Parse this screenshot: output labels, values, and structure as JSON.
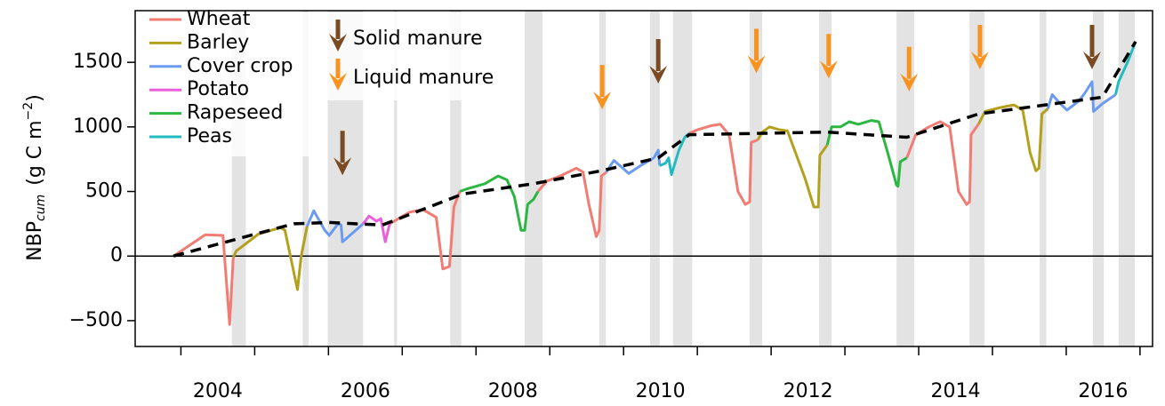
{
  "chart_data": {
    "type": "line",
    "y_label": {
      "main": "NBP",
      "subscript": "cum",
      "unit": "(g C m",
      "superscript": "−2",
      "close": ")"
    },
    "xlim": [
      2003.38,
      2017.17
    ],
    "ylim": [
      -700,
      1900
    ],
    "yticks": [
      {
        "value": -500,
        "label": "−500"
      },
      0,
      500,
      1000,
      1500
    ],
    "xticks": [
      {
        "value": 2004.5,
        "label": "2004"
      },
      {
        "value": 2006.5,
        "label": "2006"
      },
      {
        "value": 2008.5,
        "label": "2008"
      },
      {
        "value": 2010.5,
        "label": "2010"
      },
      {
        "value": 2012.5,
        "label": "2012"
      },
      {
        "value": 2014.5,
        "label": "2014"
      },
      {
        "value": 2016.5,
        "label": "2016"
      }
    ],
    "xtick_marks": [
      2004,
      2005,
      2006,
      2007,
      2008,
      2009,
      2010,
      2011,
      2012,
      2013,
      2014,
      2015,
      2016,
      2017
    ],
    "hline": 0,
    "legend": "top-left",
    "series": [
      {
        "name": "Wheat",
        "color": "#f07c74",
        "x": [
          2003.9,
          2004.33,
          2004.57,
          2004.66,
          2004.71,
          null,
          2006.83,
          2006.92,
          2007.1,
          2007.28,
          2007.46,
          2007.55,
          2007.64,
          2007.7,
          2007.78,
          null,
          2008.84,
          2008.96,
          2009.14,
          2009.36,
          2009.45,
          2009.53,
          2009.63,
          2009.67,
          2009.7,
          2009.77,
          null,
          2010.89,
          2011.01,
          2011.19,
          2011.31,
          2011.43,
          2011.55,
          2011.65,
          2011.71,
          2011.73,
          2011.82,
          null,
          2013.84,
          2013.96,
          2014.14,
          2014.29,
          2014.42,
          2014.54,
          2014.65,
          2014.69,
          2014.71,
          2014.81
        ],
        "values": [
          0,
          165,
          160,
          -530,
          -10,
          null,
          250,
          280,
          340,
          360,
          300,
          -100,
          -80,
          380,
          500,
          null,
          500,
          580,
          620,
          680,
          650,
          400,
          150,
          200,
          620,
          650,
          null,
          950,
          980,
          1010,
          1020,
          940,
          500,
          400,
          420,
          880,
          900,
          null,
          760,
          940,
          1000,
          1040,
          1000,
          500,
          400,
          420,
          940,
          1020
        ]
      },
      {
        "name": "Barley",
        "color": "#b3a01c",
        "x": [
          2004.71,
          2004.75,
          2005.05,
          2005.35,
          2005.41,
          2005.58,
          2005.63,
          2005.71,
          null,
          2011.82,
          2011.88,
          2011.98,
          2012.1,
          2012.22,
          2012.46,
          2012.58,
          2012.64,
          2012.66,
          2012.76,
          null,
          2014.81,
          2014.9,
          2015.11,
          2015.29,
          2015.41,
          2015.51,
          2015.59,
          2015.63,
          2015.67,
          2015.75
        ],
        "values": [
          -10,
          40,
          170,
          220,
          200,
          -260,
          0,
          230,
          null,
          900,
          960,
          1000,
          980,
          970,
          600,
          380,
          380,
          780,
          860,
          null,
          1020,
          1120,
          1150,
          1170,
          1130,
          800,
          660,
          680,
          1100,
          1140
        ]
      },
      {
        "name": "Cover crop",
        "color": "#6b9bf0",
        "x": [
          2005.71,
          2005.8,
          2005.95,
          2006.01,
          2006.13,
          2006.17,
          2006.19,
          2006.37,
          2006.47,
          null,
          2009.77,
          2009.82,
          2009.87,
          2009.99,
          2010.07,
          2010.23,
          2010.41,
          2010.47,
          2010.49,
          null,
          2015.75,
          2015.81,
          2015.92,
          2016.01,
          2016.17,
          2016.25,
          2016.35,
          2016.37,
          2016.49,
          2016.67
        ],
        "values": [
          230,
          350,
          200,
          160,
          250,
          240,
          110,
          200,
          250,
          null,
          650,
          700,
          740,
          680,
          640,
          700,
          760,
          820,
          700,
          null,
          1140,
          1250,
          1180,
          1130,
          1200,
          1260,
          1350,
          1120,
          1180,
          1250
        ]
      },
      {
        "name": "Potato",
        "color": "#ea5fdc",
        "x": [
          2006.47,
          2006.55,
          2006.65,
          2006.71,
          2006.77,
          2006.83
        ],
        "values": [
          250,
          310,
          270,
          290,
          110,
          250
        ]
      },
      {
        "name": "Rapeseed",
        "color": "#2cb742",
        "x": [
          2007.78,
          2007.88,
          2008.12,
          2008.3,
          2008.42,
          2008.52,
          2008.61,
          2008.66,
          2008.7,
          2008.78,
          2008.84,
          null,
          2012.76,
          2012.82,
          2012.94,
          2013.06,
          2013.18,
          2013.36,
          2013.46,
          2013.58,
          2013.7,
          2013.72,
          2013.75,
          2013.84
        ],
        "values": [
          500,
          520,
          560,
          620,
          590,
          460,
          200,
          200,
          400,
          440,
          500,
          null,
          860,
          1000,
          1000,
          1040,
          1020,
          1050,
          1040,
          800,
          550,
          540,
          730,
          760
        ]
      },
      {
        "name": "Peas",
        "color": "#22bcc0",
        "x": [
          2010.49,
          2010.57,
          2010.61,
          2010.65,
          2010.75,
          2010.83,
          2010.89,
          null,
          2016.67,
          2016.71,
          2016.83,
          2016.94
        ],
        "values": [
          700,
          720,
          760,
          630,
          820,
          920,
          950,
          null,
          1250,
          1350,
          1500,
          1660
        ]
      }
    ],
    "trend": {
      "color": "#000000",
      "x": [
        2003.9,
        2005.53,
        2006.01,
        2006.73,
        2007.82,
        2008.78,
        2009.69,
        2010.47,
        2010.89,
        2012.76,
        2013.84,
        2014.81,
        2016.49,
        2016.94
      ],
      "values": [
        0,
        250,
        260,
        240,
        480,
        560,
        660,
        760,
        940,
        960,
        920,
        1100,
        1230,
        1660
      ]
    },
    "shaded_periods": [
      [
        2004.69,
        2004.88
      ],
      [
        2005.65,
        2005.73
      ],
      [
        2005.99,
        2006.47
      ],
      [
        2006.89,
        2006.93
      ],
      [
        2007.65,
        2007.8
      ],
      [
        2008.66,
        2008.9
      ],
      [
        2009.67,
        2009.76
      ],
      [
        2010.36,
        2010.49
      ],
      [
        2010.67,
        2010.93
      ],
      [
        2011.71,
        2011.88
      ],
      [
        2012.65,
        2012.82
      ],
      [
        2013.7,
        2013.94
      ],
      [
        2014.69,
        2014.89
      ],
      [
        2015.64,
        2015.73
      ],
      [
        2016.36,
        2016.51
      ],
      [
        2016.71,
        2016.93
      ]
    ],
    "manure": [
      {
        "name": "Solid manure",
        "color": "#7a4a22",
        "x": [
          2006.19,
          2010.47,
          2016.35
        ]
      },
      {
        "name": "Liquid manure",
        "color": "#f7931e",
        "x": [
          2009.71,
          2011.8,
          2012.78,
          2013.87,
          2014.83
        ]
      }
    ]
  }
}
